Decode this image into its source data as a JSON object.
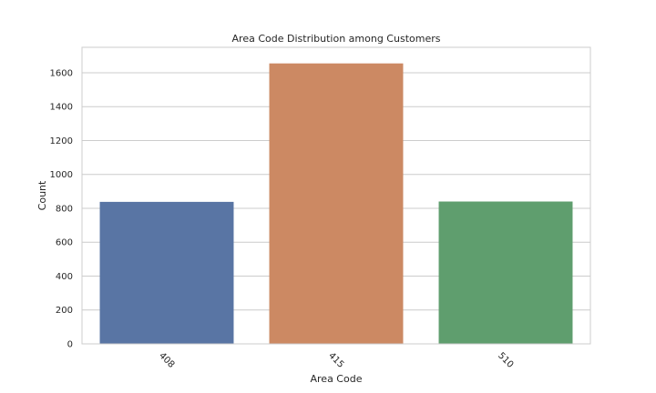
{
  "chart_data": {
    "type": "bar",
    "title": "Area Code Distribution among Customers",
    "xlabel": "Area Code",
    "ylabel": "Count",
    "categories": [
      "408",
      "415",
      "510"
    ],
    "values": [
      838,
      1655,
      840
    ],
    "colors": [
      "#5975a4",
      "#cc8963",
      "#5f9e6e"
    ],
    "ylim": [
      0,
      1750
    ],
    "yticks": [
      0,
      200,
      400,
      600,
      800,
      1000,
      1200,
      1400,
      1600
    ],
    "grid": "horizontal",
    "legend": "none"
  }
}
